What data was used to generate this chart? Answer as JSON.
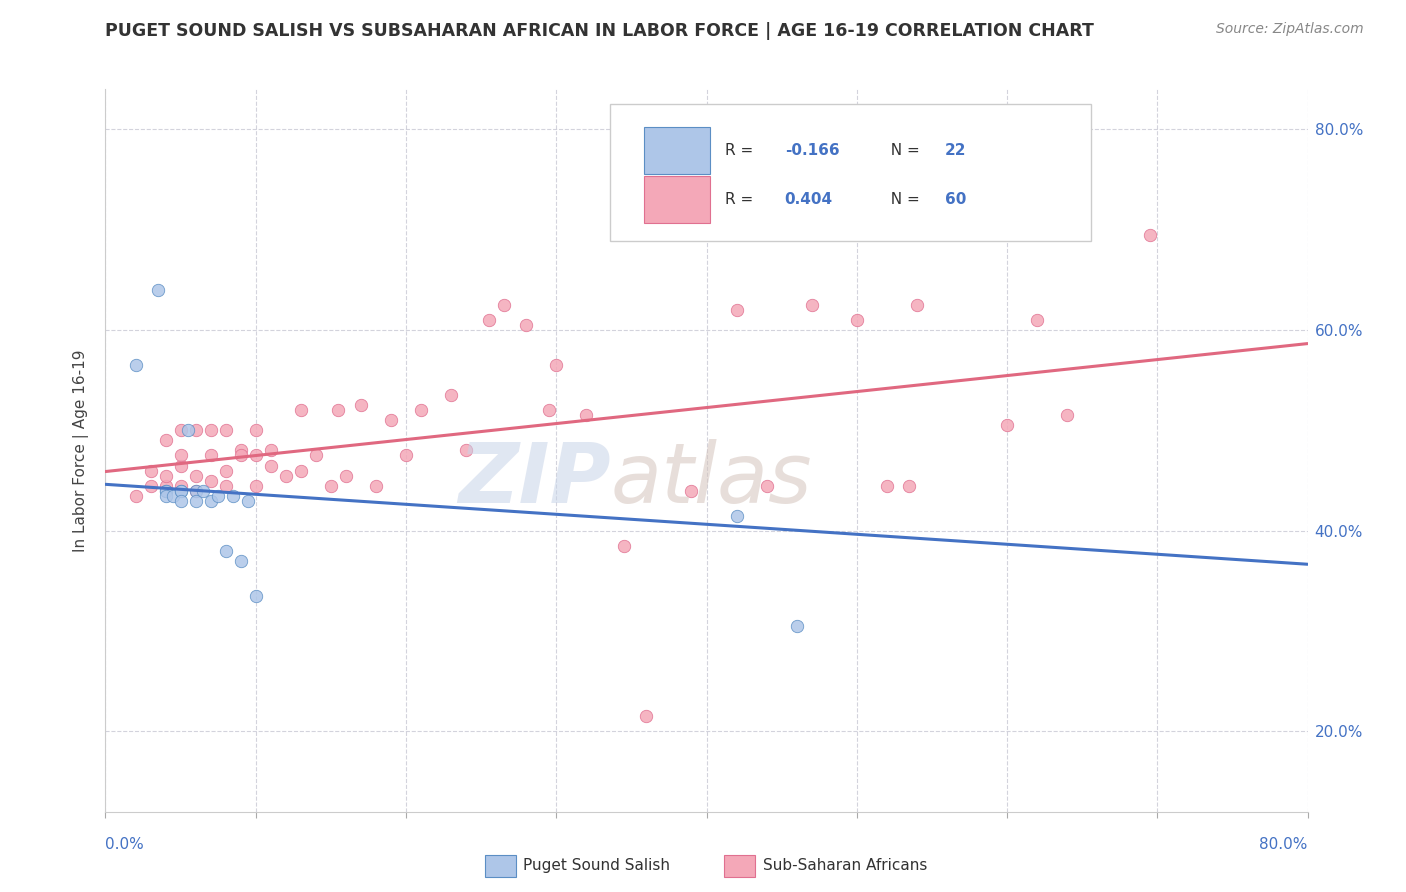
{
  "title": "PUGET SOUND SALISH VS SUBSAHARAN AFRICAN IN LABOR FORCE | AGE 16-19 CORRELATION CHART",
  "source": "Source: ZipAtlas.com",
  "ylabel": "In Labor Force | Age 16-19",
  "right_yticks": [
    20.0,
    40.0,
    60.0,
    80.0
  ],
  "legend_blue_r": "R = -0.166",
  "legend_blue_n": "N = 22",
  "legend_pink_r": "R = 0.404",
  "legend_pink_n": "N = 60",
  "legend_label_blue": "Puget Sound Salish",
  "legend_label_pink": "Sub-Saharan Africans",
  "blue_R": -0.166,
  "pink_R": 0.404,
  "blue_color": "#aec6e8",
  "pink_color": "#f4a8b8",
  "blue_edge_color": "#5b8ec4",
  "pink_edge_color": "#e07090",
  "blue_line_color": "#4472c4",
  "pink_line_color": "#e06880",
  "watermark_zip_color": "#c8d4e8",
  "watermark_atlas_color": "#d4c8c0",
  "bg_color": "#ffffff",
  "grid_color": "#c8c8d4",
  "tick_color": "#4472c4",
  "blue_scatter_x": [
    0.02,
    0.035,
    0.04,
    0.04,
    0.04,
    0.045,
    0.05,
    0.05,
    0.05,
    0.055,
    0.06,
    0.06,
    0.065,
    0.07,
    0.075,
    0.08,
    0.085,
    0.09,
    0.095,
    0.1,
    0.42,
    0.46
  ],
  "blue_scatter_y": [
    0.565,
    0.64,
    0.44,
    0.44,
    0.435,
    0.435,
    0.44,
    0.44,
    0.43,
    0.5,
    0.44,
    0.43,
    0.44,
    0.43,
    0.435,
    0.38,
    0.435,
    0.37,
    0.43,
    0.335,
    0.415,
    0.305
  ],
  "pink_scatter_x": [
    0.02,
    0.03,
    0.03,
    0.04,
    0.04,
    0.04,
    0.05,
    0.05,
    0.05,
    0.05,
    0.06,
    0.06,
    0.06,
    0.07,
    0.07,
    0.07,
    0.08,
    0.08,
    0.08,
    0.09,
    0.09,
    0.1,
    0.1,
    0.1,
    0.11,
    0.11,
    0.12,
    0.13,
    0.13,
    0.14,
    0.15,
    0.155,
    0.16,
    0.17,
    0.18,
    0.19,
    0.2,
    0.21,
    0.23,
    0.24,
    0.255,
    0.265,
    0.28,
    0.295,
    0.3,
    0.32,
    0.345,
    0.36,
    0.39,
    0.42,
    0.44,
    0.47,
    0.5,
    0.52,
    0.54,
    0.535,
    0.6,
    0.62,
    0.64,
    0.695
  ],
  "pink_scatter_y": [
    0.435,
    0.445,
    0.46,
    0.445,
    0.455,
    0.49,
    0.445,
    0.465,
    0.475,
    0.5,
    0.455,
    0.44,
    0.5,
    0.45,
    0.475,
    0.5,
    0.445,
    0.46,
    0.5,
    0.48,
    0.475,
    0.445,
    0.475,
    0.5,
    0.465,
    0.48,
    0.455,
    0.46,
    0.52,
    0.475,
    0.445,
    0.52,
    0.455,
    0.525,
    0.445,
    0.51,
    0.475,
    0.52,
    0.535,
    0.48,
    0.61,
    0.625,
    0.605,
    0.52,
    0.565,
    0.515,
    0.385,
    0.215,
    0.44,
    0.62,
    0.445,
    0.625,
    0.61,
    0.445,
    0.625,
    0.445,
    0.505,
    0.61,
    0.515,
    0.695
  ],
  "xlim": [
    0.0,
    0.8
  ],
  "ylim": [
    0.12,
    0.84
  ],
  "xticks": [
    0.0,
    0.1,
    0.2,
    0.3,
    0.4,
    0.5,
    0.6,
    0.7,
    0.8
  ],
  "yticks": [
    0.2,
    0.4,
    0.6,
    0.8
  ],
  "figsize": [
    14.06,
    8.92
  ],
  "dpi": 100
}
